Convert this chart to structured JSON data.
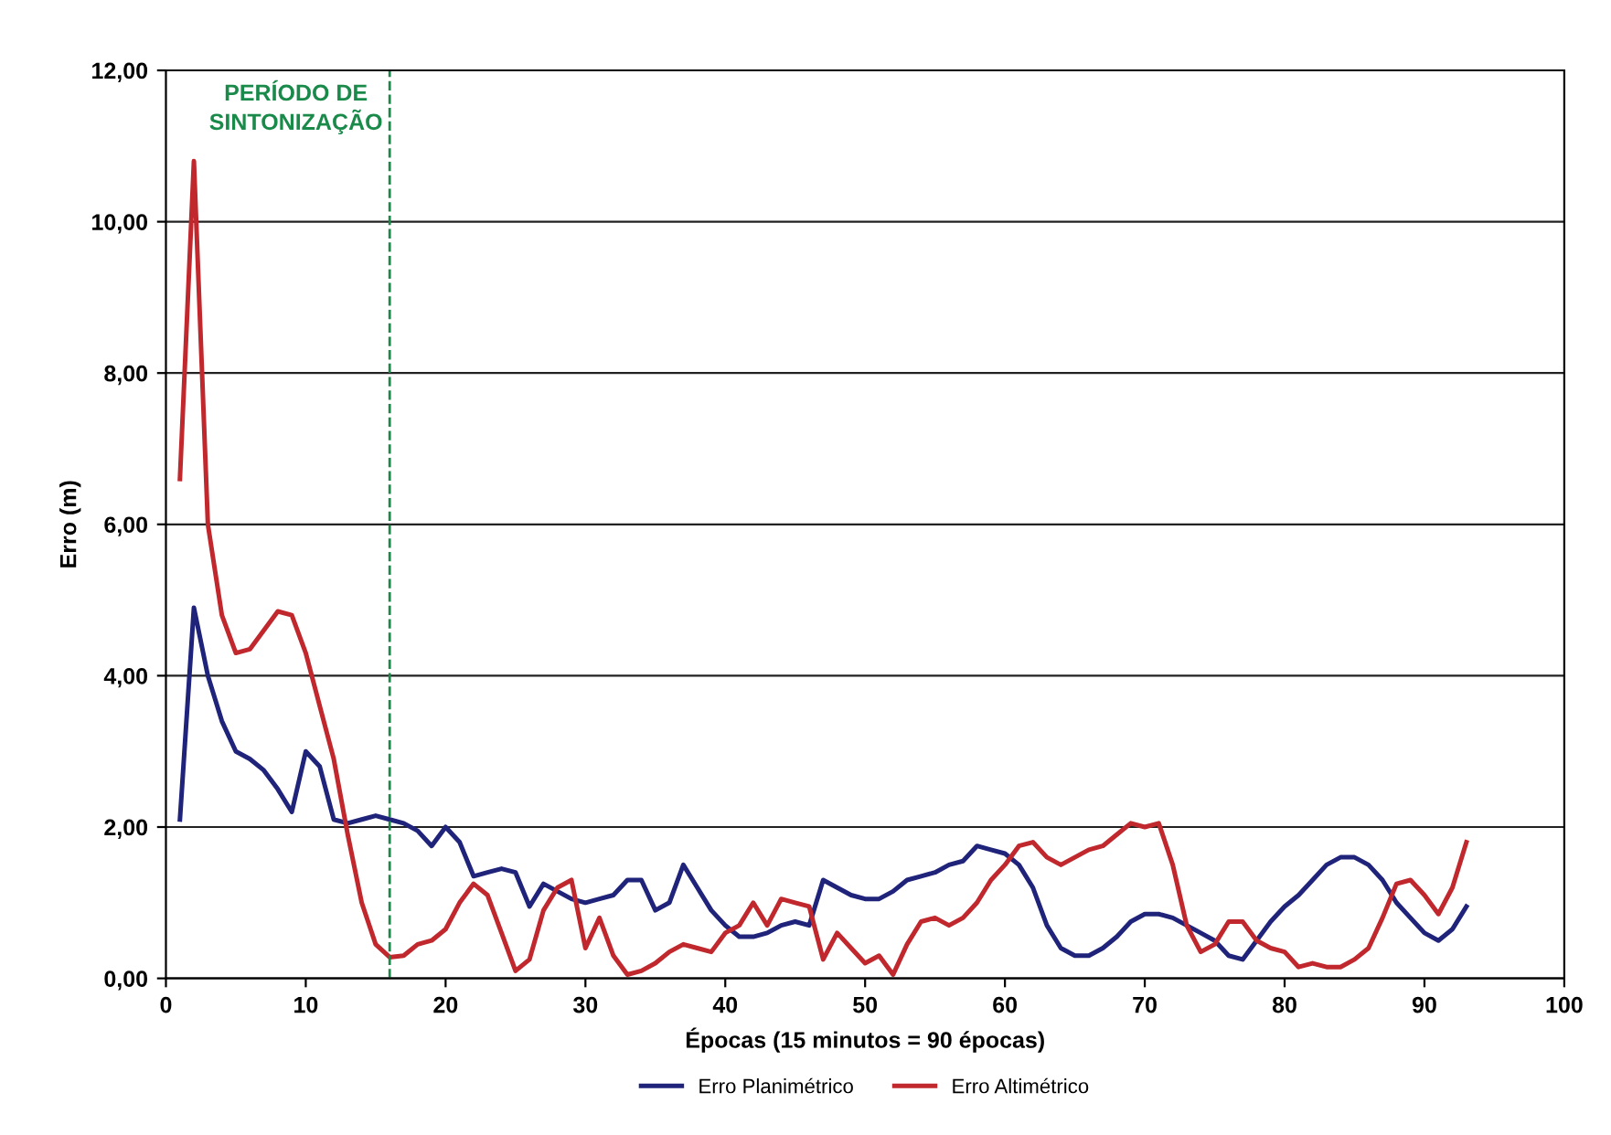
{
  "chart_data": {
    "type": "line",
    "xlabel": "Épocas (15 minutos = 90 épocas)",
    "ylabel": "Erro (m)",
    "x": [
      1,
      2,
      3,
      4,
      5,
      6,
      7,
      8,
      9,
      10,
      11,
      12,
      13,
      14,
      15,
      16,
      17,
      18,
      19,
      20,
      21,
      22,
      23,
      24,
      25,
      26,
      27,
      28,
      29,
      30,
      31,
      32,
      33,
      34,
      35,
      36,
      37,
      38,
      39,
      40,
      41,
      42,
      43,
      44,
      45,
      46,
      47,
      48,
      49,
      50,
      51,
      52,
      53,
      54,
      55,
      56,
      57,
      58,
      59,
      60,
      61,
      62,
      63,
      64,
      65,
      66,
      67,
      68,
      69,
      70,
      71,
      72,
      73,
      74,
      75,
      76,
      77,
      78,
      79,
      80,
      81,
      82,
      83,
      84,
      85,
      86,
      87,
      88,
      89,
      90,
      91,
      92,
      93
    ],
    "series": [
      {
        "name": "Erro Planimétrico",
        "color": "#1f237a",
        "values": [
          2.1,
          4.9,
          4.0,
          3.4,
          3.0,
          2.9,
          2.75,
          2.5,
          2.2,
          3.0,
          2.8,
          2.1,
          2.05,
          2.1,
          2.15,
          2.1,
          2.05,
          1.95,
          1.75,
          2.0,
          1.8,
          1.35,
          1.4,
          1.45,
          1.4,
          0.95,
          1.25,
          1.15,
          1.05,
          1.0,
          1.05,
          1.1,
          1.3,
          1.3,
          0.9,
          1.0,
          1.5,
          1.2,
          0.9,
          0.7,
          0.55,
          0.55,
          0.6,
          0.7,
          0.75,
          0.7,
          1.3,
          1.2,
          1.1,
          1.05,
          1.05,
          1.15,
          1.3,
          1.35,
          1.4,
          1.5,
          1.55,
          1.75,
          1.7,
          1.65,
          1.5,
          1.2,
          0.7,
          0.4,
          0.3,
          0.3,
          0.4,
          0.55,
          0.75,
          0.85,
          0.85,
          0.8,
          0.7,
          0.6,
          0.5,
          0.3,
          0.25,
          0.5,
          0.75,
          0.95,
          1.1,
          1.3,
          1.5,
          1.6,
          1.6,
          1.5,
          1.3,
          1.0,
          0.8,
          0.6,
          0.5,
          0.65,
          0.95
        ]
      },
      {
        "name": "Erro Altimétrico",
        "color": "#c0282d",
        "values": [
          6.6,
          10.8,
          6.0,
          4.8,
          4.3,
          4.35,
          4.6,
          4.85,
          4.8,
          4.3,
          3.6,
          2.9,
          1.9,
          1.0,
          0.45,
          0.28,
          0.3,
          0.45,
          0.5,
          0.65,
          1.0,
          1.25,
          1.1,
          0.6,
          0.1,
          0.25,
          0.9,
          1.2,
          1.3,
          0.4,
          0.8,
          0.3,
          0.05,
          0.1,
          0.2,
          0.35,
          0.45,
          0.4,
          0.35,
          0.6,
          0.7,
          1.0,
          0.7,
          1.05,
          1.0,
          0.95,
          0.25,
          0.6,
          0.4,
          0.2,
          0.3,
          0.05,
          0.45,
          0.75,
          0.8,
          0.7,
          0.8,
          1.0,
          1.3,
          1.5,
          1.75,
          1.8,
          1.6,
          1.5,
          1.6,
          1.7,
          1.75,
          1.9,
          2.05,
          2.0,
          2.05,
          1.5,
          0.7,
          0.35,
          0.45,
          0.75,
          0.75,
          0.5,
          0.4,
          0.35,
          0.15,
          0.2,
          0.15,
          0.15,
          0.25,
          0.4,
          0.8,
          1.25,
          1.3,
          1.1,
          0.85,
          1.2,
          1.8
        ]
      }
    ],
    "xlim": [
      0,
      100
    ],
    "xticks": [
      0,
      10,
      20,
      30,
      40,
      50,
      60,
      70,
      80,
      90,
      100
    ],
    "ylim": [
      0,
      12
    ],
    "yticks": [
      {
        "value": 0,
        "label": "0,00"
      },
      {
        "value": 2,
        "label": "2,00"
      },
      {
        "value": 4,
        "label": "4,00"
      },
      {
        "value": 6,
        "label": "6,00"
      },
      {
        "value": 8,
        "label": "8,00"
      },
      {
        "value": 10,
        "label": "10,00"
      },
      {
        "value": 12,
        "label": "12,00"
      }
    ],
    "ref_lines": [
      {
        "axis": "x",
        "value": 16,
        "label": "PERÍODO DE\nSINTONIZAÇÃO",
        "color": "#1a8a4a",
        "line_style": "dashed"
      }
    ],
    "grid": "y",
    "legend": "bottom",
    "marker": "none",
    "line_style": "solid"
  }
}
